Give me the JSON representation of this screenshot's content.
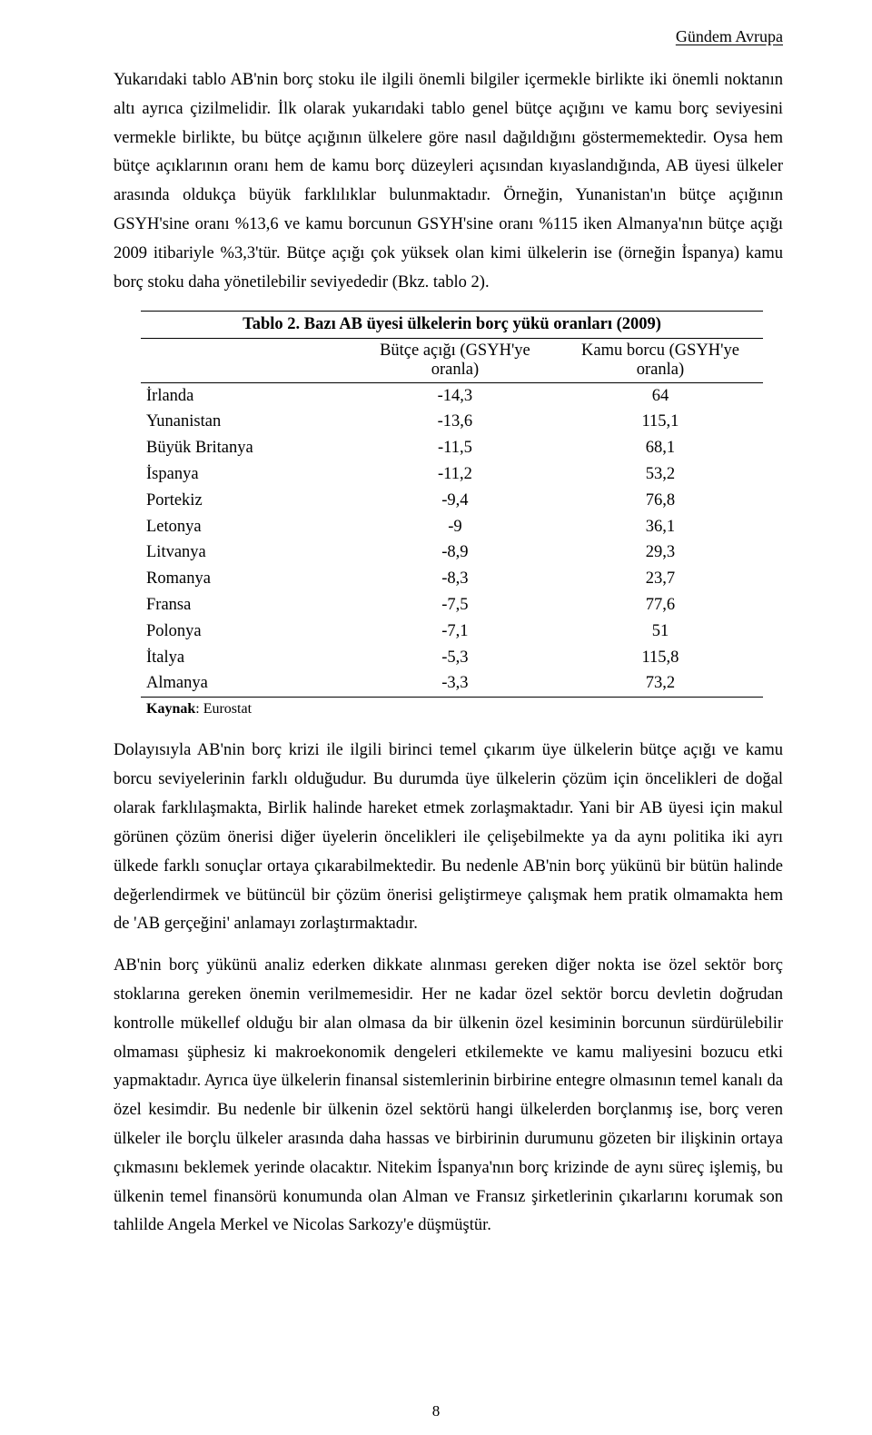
{
  "header": {
    "running_head": "Gündem Avrupa"
  },
  "paragraphs": {
    "p1": "Yukarıdaki tablo AB'nin borç stoku ile ilgili önemli bilgiler içermekle birlikte iki önemli noktanın altı ayrıca çizilmelidir. İlk olarak yukarıdaki tablo genel bütçe açığını ve kamu borç seviyesini vermekle birlikte, bu bütçe açığının ülkelere göre nasıl dağıldığını göstermemektedir. Oysa hem bütçe açıklarının oranı hem de kamu borç düzeyleri açısından kıyaslandığında, AB üyesi ülkeler arasında oldukça büyük farklılıklar bulunmaktadır. Örneğin, Yunanistan'ın bütçe açığının GSYH'sine oranı %13,6 ve kamu borcunun GSYH'sine oranı %115 iken Almanya'nın bütçe açığı 2009 itibariyle %3,3'tür. Bütçe açığı çok yüksek olan kimi ülkelerin ise (örneğin İspanya) kamu borç stoku daha yönetilebilir seviyededir (Bkz. tablo 2).",
    "p2": "Dolayısıyla AB'nin borç krizi ile ilgili birinci temel çıkarım üye ülkelerin bütçe açığı ve kamu borcu seviyelerinin farklı olduğudur. Bu durumda üye ülkelerin çözüm için öncelikleri de doğal olarak farklılaşmakta, Birlik halinde hareket etmek zorlaşmaktadır. Yani bir AB üyesi için makul görünen çözüm önerisi diğer üyelerin öncelikleri ile çelişebilmekte ya da aynı politika iki ayrı ülkede farklı sonuçlar ortaya çıkarabilmektedir. Bu nedenle AB'nin borç yükünü bir bütün halinde değerlendirmek ve bütüncül bir çözüm önerisi geliştirmeye çalışmak hem pratik olmamakta hem de 'AB gerçeğini' anlamayı zorlaştırmaktadır.",
    "p3": "AB'nin borç yükünü analiz ederken dikkate alınması gereken diğer nokta ise özel sektör borç stoklarına gereken önemin verilmemesidir. Her ne kadar özel sektör borcu devletin doğrudan kontrolle mükellef olduğu bir alan olmasa da bir ülkenin özel kesiminin borcunun sürdürülebilir olmaması şüphesiz ki makroekonomik dengeleri etkilemekte ve kamu maliyesini bozucu etki yapmaktadır. Ayrıca üye ülkelerin finansal sistemlerinin birbirine entegre olmasının temel kanalı da özel kesimdir. Bu nedenle bir ülkenin özel sektörü hangi ülkelerden borçlanmış ise, borç veren ülkeler ile borçlu ülkeler arasında daha hassas ve birbirinin durumunu gözeten bir ilişkinin ortaya çıkmasını beklemek yerinde olacaktır. Nitekim İspanya'nın borç krizinde de aynı süreç işlemiş, bu ülkenin temel finansörü konumunda olan Alman ve Fransız şirketlerinin çıkarlarını korumak son tahlilde Angela Merkel ve Nicolas Sarkozy'e düşmüştür."
  },
  "table": {
    "caption": "Tablo 2. Bazı AB üyesi ülkelerin borç yükü oranları (2009)",
    "columns": {
      "country": "",
      "deficit": "Bütçe açığı (GSYH'ye oranla)",
      "debt": "Kamu borcu (GSYH'ye oranla)"
    },
    "rows": [
      {
        "country": "İrlanda",
        "deficit": "-14,3",
        "debt": "64"
      },
      {
        "country": "Yunanistan",
        "deficit": "-13,6",
        "debt": "115,1"
      },
      {
        "country": "Büyük Britanya",
        "deficit": "-11,5",
        "debt": "68,1"
      },
      {
        "country": "İspanya",
        "deficit": "-11,2",
        "debt": "53,2"
      },
      {
        "country": "Portekiz",
        "deficit": "-9,4",
        "debt": "76,8"
      },
      {
        "country": "Letonya",
        "deficit": "-9",
        "debt": "36,1"
      },
      {
        "country": "Litvanya",
        "deficit": "-8,9",
        "debt": "29,3"
      },
      {
        "country": "Romanya",
        "deficit": "-8,3",
        "debt": "23,7"
      },
      {
        "country": "Fransa",
        "deficit": "-7,5",
        "debt": "77,6"
      },
      {
        "country": "Polonya",
        "deficit": "-7,1",
        "debt": "51"
      },
      {
        "country": "İtalya",
        "deficit": "-5,3",
        "debt": "115,8"
      },
      {
        "country": "Almanya",
        "deficit": "-3,3",
        "debt": "73,2"
      }
    ],
    "source_label": "Kaynak",
    "source_value": "Eurostat",
    "col_widths": {
      "country": "34%",
      "deficit": "33%",
      "debt": "33%"
    }
  },
  "footer": {
    "page_number": "8"
  },
  "style": {
    "body_font_size_pt": 14,
    "text_color": "#000000",
    "background_color": "#ffffff",
    "rule_color": "#000000"
  }
}
